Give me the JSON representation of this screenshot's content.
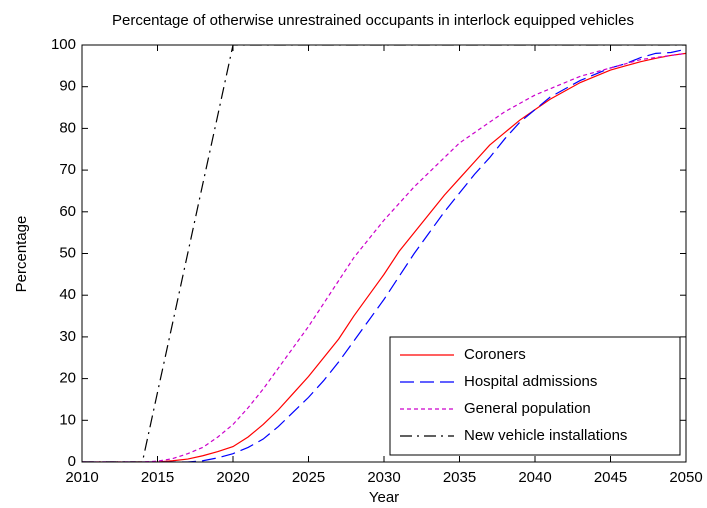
{
  "chart_data": {
    "type": "line",
    "title": "Percentage of otherwise unrestrained occupants in interlock equipped vehicles",
    "xlabel": "Year",
    "ylabel": "Percentage",
    "x": [
      2010,
      2011,
      2012,
      2013,
      2014,
      2015,
      2016,
      2017,
      2018,
      2019,
      2020,
      2021,
      2022,
      2023,
      2024,
      2025,
      2026,
      2027,
      2028,
      2029,
      2030,
      2031,
      2032,
      2033,
      2034,
      2035,
      2036,
      2037,
      2038,
      2039,
      2040,
      2041,
      2042,
      2043,
      2044,
      2045,
      2046,
      2047,
      2048,
      2049,
      2050
    ],
    "series": [
      {
        "name": "Coroners",
        "color": "#ff0000",
        "style": "solid",
        "values": [
          0,
          0,
          0,
          0,
          0,
          0,
          0.3,
          0.7,
          1.5,
          2.5,
          3.7,
          6,
          9,
          12.5,
          16.5,
          20.5,
          25,
          29.5,
          35,
          40,
          45,
          50.5,
          55,
          59.5,
          64,
          68,
          72,
          76,
          79,
          82,
          84.5,
          87,
          89,
          91,
          92.5,
          94,
          95,
          96,
          96.8,
          97.5,
          98
        ]
      },
      {
        "name": "Hospital admissions",
        "color": "#0000ff",
        "style": "dashed",
        "values": [
          0,
          0,
          0,
          0,
          0,
          0,
          0,
          0,
          0.3,
          1,
          2,
          3.5,
          5.5,
          8.5,
          12,
          15.5,
          19.5,
          24,
          29,
          34,
          39,
          44.5,
          50,
          55,
          60,
          64.5,
          69,
          73,
          77.5,
          81.5,
          84.5,
          87.5,
          89.5,
          91.5,
          93,
          94.5,
          95.5,
          97,
          98,
          98.2,
          99
        ]
      },
      {
        "name": "General population",
        "color": "#cc00cc",
        "style": "dotted",
        "values": [
          0,
          0,
          0,
          0,
          0,
          0.2,
          0.8,
          2,
          3.5,
          6,
          9,
          13,
          17.5,
          22.5,
          27.5,
          32.5,
          38,
          43.5,
          49,
          53.5,
          58,
          62,
          66,
          69.5,
          73,
          76.5,
          79,
          81.5,
          84,
          86,
          88,
          89.5,
          91,
          92.5,
          93.5,
          94.5,
          95.5,
          96.5,
          97,
          97.5,
          98
        ]
      },
      {
        "name": "New vehicle installations",
        "color": "#000000",
        "style": "dashdot",
        "values": [
          0,
          0,
          0,
          0,
          0,
          16.7,
          33.3,
          50,
          66.7,
          83.3,
          100,
          100,
          100,
          100,
          100,
          100,
          100,
          100,
          100,
          100,
          100,
          100,
          100,
          100,
          100,
          100,
          100,
          100,
          100,
          100,
          100,
          100,
          100,
          100,
          100,
          100,
          100,
          100,
          100,
          100,
          100
        ]
      }
    ],
    "xlim": [
      2010,
      2050
    ],
    "xticks": [
      2010,
      2015,
      2020,
      2025,
      2030,
      2035,
      2040,
      2045,
      2050
    ],
    "ylim": [
      0,
      100
    ],
    "yticks": [
      0,
      10,
      20,
      30,
      40,
      50,
      60,
      70,
      80,
      90,
      100
    ],
    "legend": "southeast",
    "grid": false
  }
}
